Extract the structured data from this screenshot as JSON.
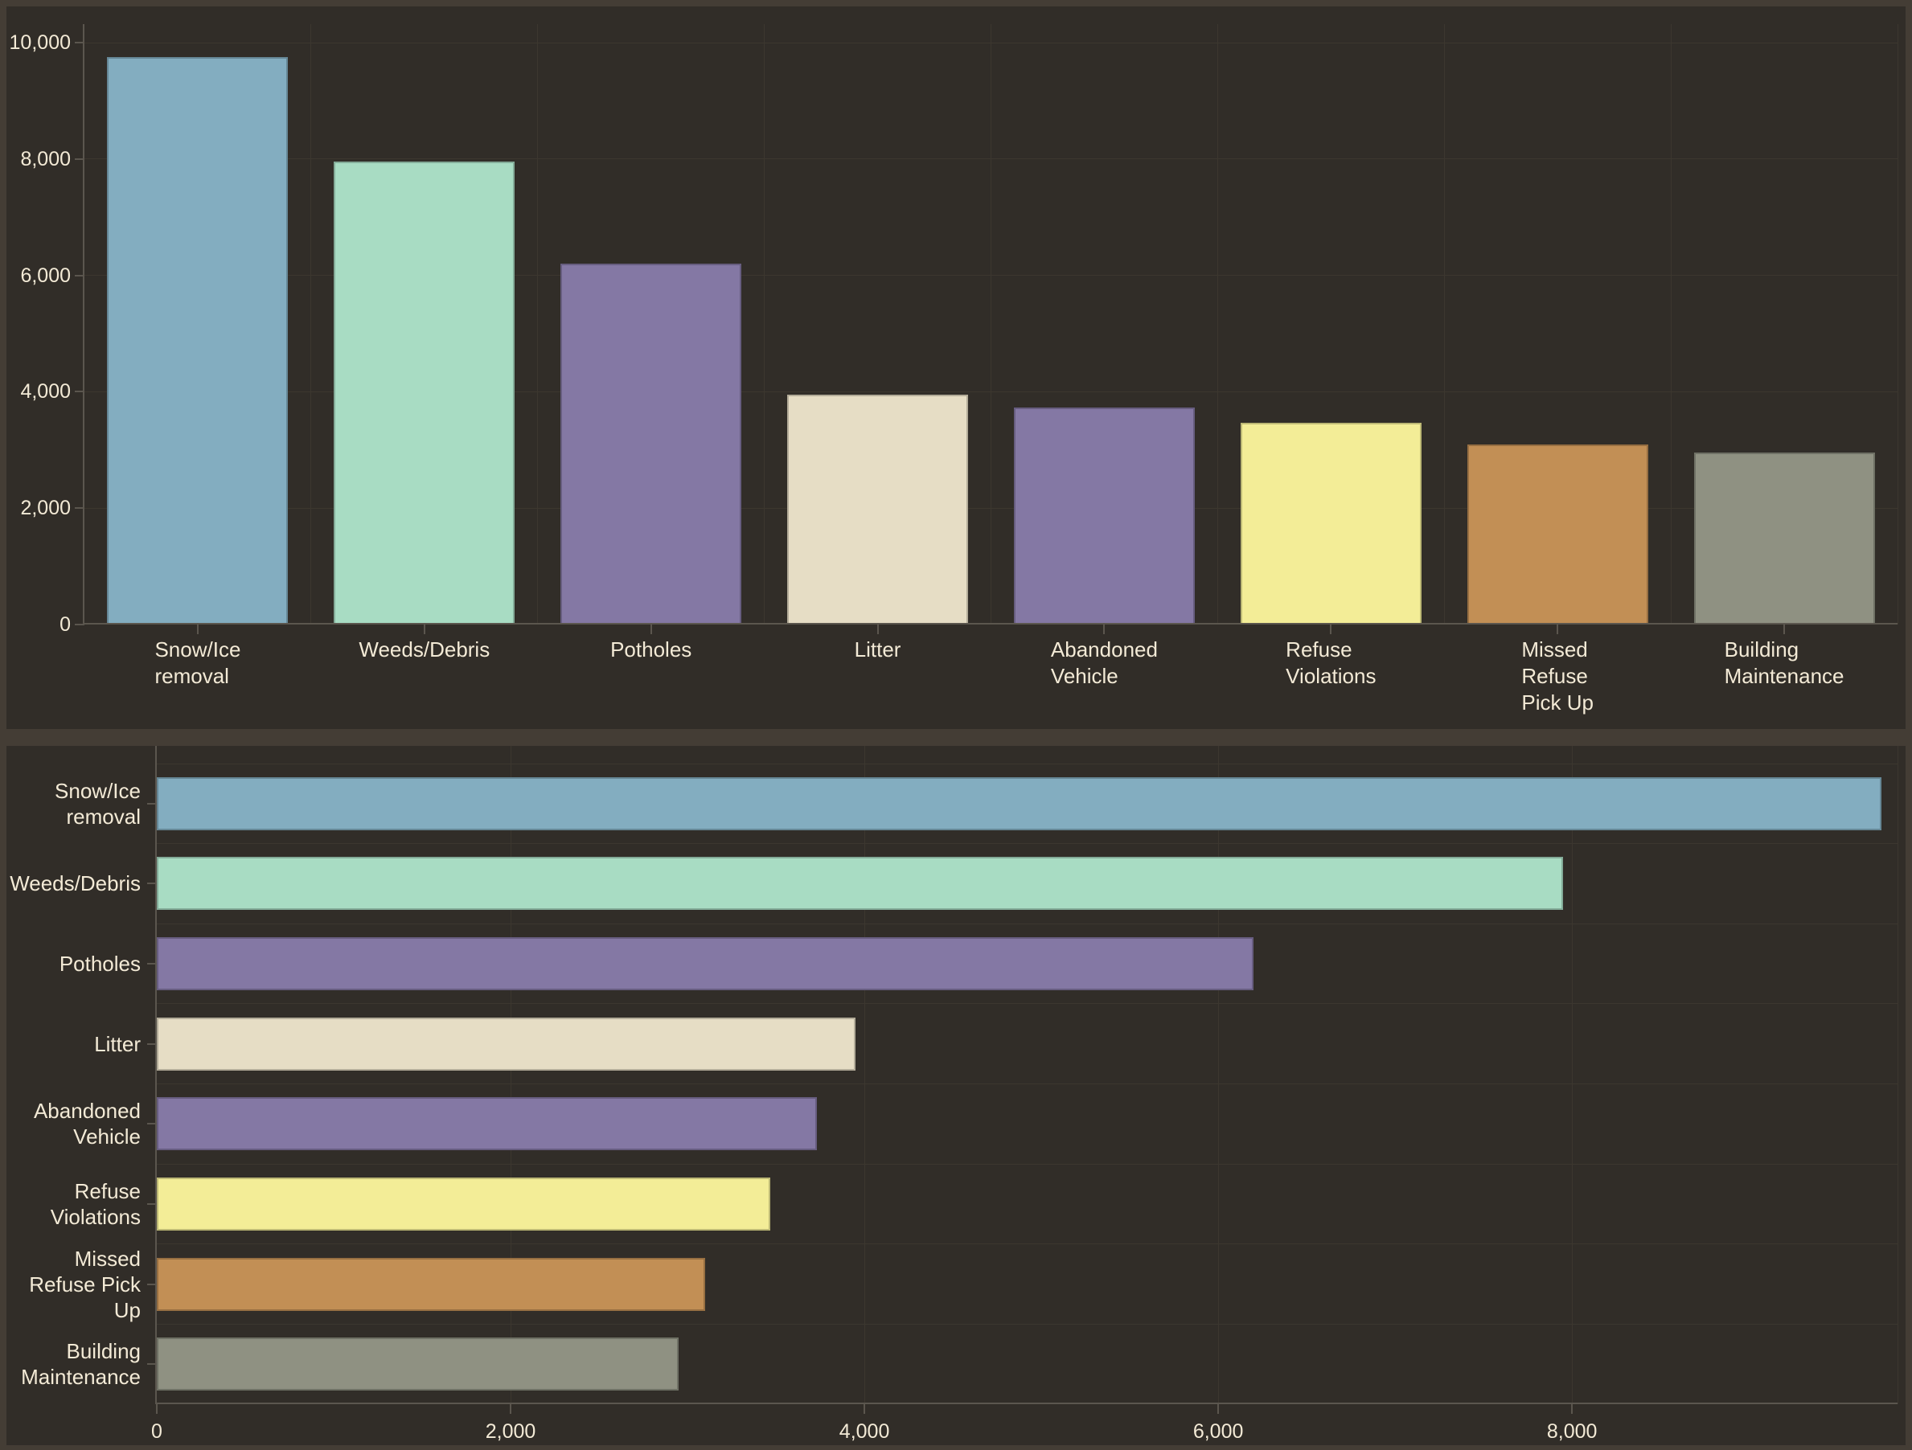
{
  "colors": {
    "background_outer": "#443d35",
    "panel_background": "#312d28",
    "gridline": "#3c372f",
    "axis": "#5b564e",
    "text": "#f3ead6"
  },
  "chart_data": [
    {
      "type": "bar",
      "orientation": "vertical",
      "title": "",
      "xlabel": "",
      "ylabel": "",
      "categories": [
        "Snow/Ice removal",
        "Weeds/Debris",
        "Potholes",
        "Litter",
        "Abandoned Vehicle",
        "Refuse Violations",
        "Missed Refuse Pick Up",
        "Building Maintenance"
      ],
      "category_label_lines": [
        [
          "Snow/Ice",
          "removal"
        ],
        [
          "Weeds/Debris"
        ],
        [
          "Potholes"
        ],
        [
          "Litter"
        ],
        [
          "Abandoned",
          "Vehicle"
        ],
        [
          "Refuse",
          "Violations"
        ],
        [
          "Missed",
          "Refuse",
          "Pick Up"
        ],
        [
          "Building",
          "Maintenance"
        ]
      ],
      "values": [
        9750,
        7950,
        6200,
        3950,
        3730,
        3470,
        3100,
        2950
      ],
      "bar_colors": [
        "#83adc0",
        "#a8dcc3",
        "#8478a4",
        "#e6ddc5",
        "#8478a4",
        "#f3ed97",
        "#c28f55",
        "#8f9182"
      ],
      "ylim": [
        0,
        10000
      ],
      "yticks": [
        0,
        2000,
        4000,
        6000,
        8000,
        10000
      ],
      "ytick_labels": [
        "0",
        "2,000",
        "4,000",
        "6,000",
        "8,000",
        "10,000"
      ],
      "grid": true,
      "legend": false
    },
    {
      "type": "bar",
      "orientation": "horizontal",
      "title": "",
      "xlabel": "",
      "ylabel": "",
      "categories": [
        "Snow/Ice removal",
        "Weeds/Debris",
        "Potholes",
        "Litter",
        "Abandoned Vehicle",
        "Refuse Violations",
        "Missed Refuse Pick Up",
        "Building Maintenance"
      ],
      "category_label_lines": [
        [
          "Snow/Ice",
          "removal"
        ],
        [
          "Weeds/Debris"
        ],
        [
          "Potholes"
        ],
        [
          "Litter"
        ],
        [
          "Abandoned",
          "Vehicle"
        ],
        [
          "Refuse",
          "Violations"
        ],
        [
          "Missed",
          "Refuse Pick",
          "Up"
        ],
        [
          "Building",
          "Maintenance"
        ]
      ],
      "values": [
        9750,
        7950,
        6200,
        3950,
        3730,
        3470,
        3100,
        2950
      ],
      "bar_colors": [
        "#83adc0",
        "#a8dcc3",
        "#8478a4",
        "#e6ddc5",
        "#8478a4",
        "#f3ed97",
        "#c28f55",
        "#8f9182"
      ],
      "xlim": [
        0,
        9840
      ],
      "xticks": [
        0,
        2000,
        4000,
        6000,
        8000
      ],
      "xtick_labels": [
        "0",
        "2,000",
        "4,000",
        "6,000",
        "8,000"
      ],
      "grid": true,
      "legend": false
    }
  ]
}
